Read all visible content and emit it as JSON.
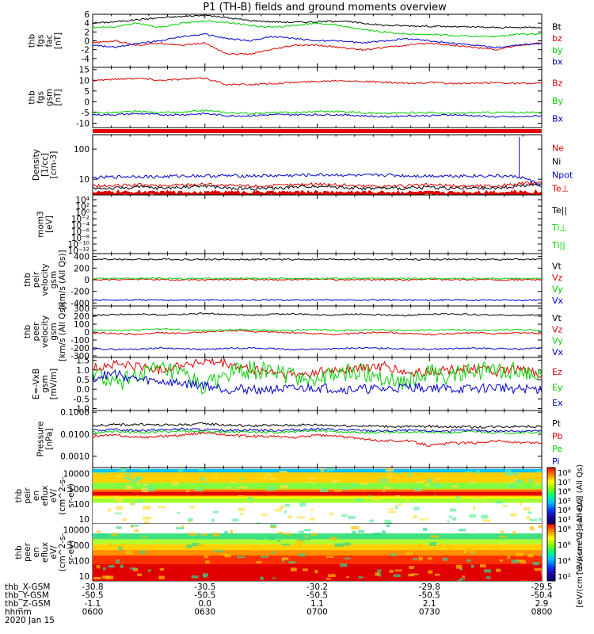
{
  "title": "P1 (TH-B) fields and ground moments overview",
  "colors": {
    "black": "#000000",
    "red": "#e00000",
    "green": "#00d000",
    "blue": "#0000cc"
  },
  "chart_data": {
    "type": "line",
    "x": {
      "tick_labels": [
        "0600",
        "0630",
        "0700",
        "0730",
        "0800"
      ],
      "range_minutes": [
        0,
        120
      ]
    },
    "ephemeris": {
      "labels": [
        "thb_X-GSM",
        "thb_Y-GSM",
        "thb_Z-GSM",
        "hhmm",
        "2020 Jan 15"
      ],
      "rows": [
        [
          "-30.8",
          "-30.5",
          "-30.2",
          "-29.8",
          "-29.5"
        ],
        [
          "-50.5",
          "-50.5",
          "-50.5",
          "-50.5",
          "-50.4"
        ],
        [
          "-1.1",
          "0.0",
          "1.1",
          "2.1",
          "2.9"
        ],
        [
          "0600",
          "0630",
          "0700",
          "0730",
          "0800"
        ]
      ]
    },
    "panels": [
      {
        "id": "fgs_fac",
        "ylabel": [
          "thb",
          "fgs",
          "fac",
          "[nT]"
        ],
        "ylim": [
          -6,
          6
        ],
        "ticks": [
          "6",
          "4",
          "2",
          "0",
          "-2",
          "-4"
        ],
        "series": [
          {
            "name": "Bt",
            "color": "black",
            "values": [
              4.0,
              4.3,
              4.8,
              5.2,
              5.5,
              5.8,
              5.2,
              4.6,
              4.3,
              4.2,
              4.3,
              4.5,
              4.0,
              3.5,
              3.4,
              3.3,
              3.2,
              3.1,
              3.0,
              3.0,
              3.1
            ]
          },
          {
            "name": "bz",
            "color": "red",
            "values": [
              -0.5,
              0.0,
              -1.0,
              -0.5,
              -1.0,
              -0.5,
              -3.0,
              -3.0,
              -2.0,
              -1.0,
              -1.0,
              -1.5,
              -2.0,
              -1.5,
              -1.0,
              -0.5,
              -1.0,
              -1.5,
              -2.0,
              -1.0,
              -0.5
            ]
          },
          {
            "name": "by",
            "color": "green",
            "values": [
              3.0,
              3.2,
              4.0,
              3.0,
              4.0,
              4.5,
              4.2,
              3.5,
              3.0,
              3.5,
              4.0,
              3.5,
              2.5,
              2.0,
              1.5,
              1.5,
              1.2,
              1.0,
              1.0,
              1.5,
              1.5
            ]
          },
          {
            "name": "bx",
            "color": "blue",
            "values": [
              -1.0,
              -1.5,
              -0.5,
              0.0,
              1.0,
              1.5,
              0.5,
              0.0,
              1.0,
              0.5,
              0.0,
              0.0,
              -0.5,
              0.0,
              0.5,
              0.0,
              -0.5,
              -1.0,
              -1.5,
              -1.0,
              -0.5
            ]
          }
        ]
      },
      {
        "id": "fgs_gsm",
        "ylabel": [
          "thb",
          "fgs",
          "gsm",
          "[nT]"
        ],
        "ylim": [
          -12,
          16
        ],
        "ticks": [
          "15",
          "10",
          "5",
          "0",
          "-5",
          "-10"
        ],
        "series": [
          {
            "name": "Bz",
            "color": "red",
            "values": [
              10.0,
              10.5,
              11.0,
              10.0,
              10.5,
              11.0,
              8.0,
              8.0,
              8.5,
              9.0,
              9.5,
              10.0,
              9.5,
              9.0,
              8.5,
              9.0,
              8.5,
              8.5,
              9.0,
              8.5,
              8.5
            ]
          },
          {
            "name": "By",
            "color": "green",
            "values": [
              -5.0,
              -5.0,
              -4.5,
              -5.0,
              -5.0,
              -4.0,
              -5.0,
              -5.5,
              -5.0,
              -5.0,
              -4.5,
              -4.5,
              -5.0,
              -5.5,
              -5.0,
              -5.0,
              -5.5,
              -5.0,
              -5.0,
              -5.0,
              -5.0
            ]
          },
          {
            "name": "Bx",
            "color": "blue",
            "values": [
              -6.0,
              -6.0,
              -5.5,
              -6.0,
              -6.0,
              -5.5,
              -6.5,
              -6.5,
              -6.0,
              -6.0,
              -6.0,
              -6.0,
              -6.5,
              -7.0,
              -6.5,
              -6.5,
              -6.0,
              -6.5,
              -7.0,
              -7.0,
              -6.5
            ]
          }
        ]
      },
      {
        "id": "density",
        "ylabel": [
          "Density",
          "[1/cc]",
          "[cm-3]"
        ],
        "scale": "log",
        "ylim": [
          3,
          300
        ],
        "ticks": [
          "100",
          "10"
        ],
        "series": [
          {
            "name": "Ne",
            "color": "red",
            "values": [
              6,
              6,
              6.5,
              6,
              6.5,
              7,
              6,
              6,
              6,
              6.5,
              7,
              6.5,
              6,
              6,
              6,
              6.5,
              6,
              6,
              6,
              7,
              8
            ]
          },
          {
            "name": "Ni",
            "color": "black",
            "values": [
              5,
              5,
              5.5,
              5,
              5.5,
              6,
              5,
              5,
              5,
              5.5,
              6,
              5.5,
              5,
              5,
              5,
              5.5,
              5,
              5,
              5,
              6,
              6.5
            ]
          },
          {
            "name": "Npot",
            "color": "blue",
            "values": [
              11,
              12,
              12.5,
              12,
              13,
              13,
              13,
              13,
              13,
              13.5,
              14,
              14,
              13,
              14,
              13,
              13,
              13,
              13,
              13,
              12,
              6
            ]
          },
          {
            "name": "Te⊥",
            "color": "red",
            "values": [
              3.3,
              3.3,
              3.3,
              3.3,
              3.3,
              3.3,
              3.3,
              3.3,
              3.3,
              3.3,
              3.3,
              3.3,
              3.3,
              3.3,
              3.3,
              3.3,
              3.3,
              3.3,
              3.3,
              3.3,
              3.3
            ]
          }
        ]
      },
      {
        "id": "mom_temp",
        "ylabel": [
          "mom3",
          "[eV]"
        ],
        "scale": "log",
        "ticks": [
          "10⁴",
          "10²",
          "10⁰",
          "10⁻²",
          "10⁻⁴",
          "10⁻⁶",
          "10⁻⁸",
          "10⁻¹⁰",
          "10⁻¹²"
        ],
        "series": [
          {
            "name": "Te||",
            "color": "black",
            "values": []
          },
          {
            "name": "Ti⊥",
            "color": "green",
            "values": []
          },
          {
            "name": "Ti||",
            "color": "green",
            "values": []
          }
        ]
      },
      {
        "id": "peir_velocity",
        "ylabel": [
          "thb",
          "peir",
          "velocity",
          "gsm",
          "[km/s (All Qs)]"
        ],
        "ylim": [
          -450,
          450
        ],
        "ticks": [
          "400",
          "200",
          "0",
          "-200",
          "-400"
        ],
        "series": [
          {
            "name": "Vt",
            "color": "black",
            "values": [
              350,
              352,
              350,
              351,
              350,
              352,
              350,
              349,
              350,
              351,
              350,
              352,
              350,
              350,
              349,
              350,
              351,
              350,
              350,
              351,
              350
            ]
          },
          {
            "name": "Vz",
            "color": "red",
            "values": [
              5,
              0,
              10,
              5,
              0,
              -5,
              5,
              10,
              0,
              5,
              10,
              0,
              5,
              0,
              -5,
              10,
              5,
              0,
              5,
              0,
              5
            ]
          },
          {
            "name": "Vy",
            "color": "green",
            "values": [
              20,
              22,
              20,
              24,
              20,
              22,
              21,
              20,
              23,
              22,
              20,
              21,
              22,
              20,
              21,
              22,
              20,
              23,
              21,
              22,
              20
            ]
          },
          {
            "name": "Vx",
            "color": "blue",
            "values": [
              -348,
              -349,
              -348,
              -350,
              -349,
              -348,
              -349,
              -350,
              -349,
              -348,
              -349,
              -350,
              -349,
              -348,
              -349,
              -350,
              -349,
              -348,
              -349,
              -350,
              -349
            ]
          }
        ]
      },
      {
        "id": "peer_velocity",
        "ylabel": [
          "thb",
          "peer",
          "velocity",
          "gsm",
          "[km/s (All Qs)]"
        ],
        "ylim": [
          -320,
          330
        ],
        "ticks": [
          "300",
          "200",
          "100",
          "0",
          "-100",
          "-200",
          "-300"
        ],
        "series": [
          {
            "name": "Vt",
            "color": "black",
            "values": [
              210,
              220,
              230,
              215,
              225,
              235,
              220,
              210,
              225,
              230,
              215,
              220,
              230,
              215,
              210,
              225,
              230,
              220,
              215,
              210,
              220
            ]
          },
          {
            "name": "Vz",
            "color": "red",
            "values": [
              -10,
              -20,
              -30,
              -10,
              -20,
              0,
              20,
              10,
              0,
              -10,
              -20,
              -30,
              -10,
              0,
              -20,
              -30,
              -20,
              -10,
              -20,
              -10,
              -20
            ]
          },
          {
            "name": "Vy",
            "color": "green",
            "values": [
              30,
              20,
              25,
              40,
              30,
              20,
              25,
              30,
              20,
              25,
              30,
              20,
              25,
              30,
              20,
              25,
              30,
              20,
              25,
              30,
              20
            ]
          },
          {
            "name": "Vx",
            "color": "blue",
            "values": [
              -210,
              -220,
              -215,
              -200,
              -210,
              -220,
              -205,
              -200,
              -210,
              -220,
              -215,
              -210,
              -200,
              -205,
              -210,
              -215,
              -210,
              -205,
              -210,
              -215,
              -200
            ]
          }
        ]
      },
      {
        "id": "efield",
        "ylabel": [
          "E=-VxB",
          "gsm",
          "[mV/m]"
        ],
        "ylim": [
          -1.1,
          1.65
        ],
        "ticks": [
          "1.5",
          "1.0",
          "0.5",
          "0.0",
          "-0.5",
          "-1.0"
        ],
        "series": [
          {
            "name": "Ez",
            "color": "red",
            "values": [
              1.1,
              1.3,
              1.2,
              1.0,
              1.3,
              1.4,
              1.3,
              1.0,
              0.9,
              0.7,
              0.9,
              1.0,
              1.1,
              1.2,
              0.8,
              0.9,
              1.0,
              1.1,
              0.9,
              1.0,
              0.8
            ]
          },
          {
            "name": "Ey",
            "color": "green",
            "values": [
              0.9,
              0.2,
              0.8,
              1.0,
              0.7,
              0.1,
              0.8,
              1.0,
              0.9,
              0.7,
              0.5,
              0.8,
              0.9,
              0.6,
              0.4,
              0.8,
              0.7,
              0.9,
              1.0,
              0.9,
              0.8
            ]
          },
          {
            "name": "Ex",
            "color": "blue",
            "values": [
              0.6,
              0.8,
              0.5,
              0.4,
              0.3,
              0.2,
              0.0,
              0.0,
              0.0,
              0.0,
              0.1,
              0.0,
              0.0,
              0.0,
              0.1,
              0.1,
              0.0,
              0.0,
              0.1,
              0.0,
              0.0
            ]
          }
        ]
      },
      {
        "id": "pressure",
        "ylabel": [
          "Pressure",
          "[nPa]"
        ],
        "scale": "log",
        "ylim": [
          0.0003,
          0.12
        ],
        "ticks": [
          "0.1000",
          "0.0100",
          "0.0010"
        ],
        "series": [
          {
            "name": "Pt",
            "color": "black",
            "values": [
              0.025,
              0.027,
              0.028,
              0.026,
              0.027,
              0.03,
              0.026,
              0.024,
              0.025,
              0.026,
              0.027,
              0.025,
              0.024,
              0.023,
              0.022,
              0.023,
              0.022,
              0.021,
              0.022,
              0.023,
              0.022
            ]
          },
          {
            "name": "Pb",
            "color": "red",
            "values": [
              0.008,
              0.009,
              0.007,
              0.008,
              0.009,
              0.012,
              0.009,
              0.008,
              0.008,
              0.007,
              0.009,
              0.008,
              0.006,
              0.005,
              0.005,
              0.003,
              0.004,
              0.004,
              0.005,
              0.004,
              0.004
            ]
          },
          {
            "name": "Pe",
            "color": "green",
            "values": [
              0.012,
              0.013,
              0.012,
              0.013,
              0.014,
              0.013,
              0.013,
              0.013,
              0.012,
              0.013,
              0.014,
              0.013,
              0.012,
              0.012,
              0.013,
              0.012,
              0.012,
              0.013,
              0.012,
              0.012,
              0.012
            ]
          },
          {
            "name": "Pi",
            "color": "blue",
            "values": [
              0.015,
              0.016,
              0.015,
              0.016,
              0.017,
              0.016,
              0.015,
              0.016,
              0.015,
              0.016,
              0.017,
              0.016,
              0.015,
              0.014,
              0.015,
              0.014,
              0.014,
              0.015,
              0.014,
              0.014,
              0.014
            ]
          }
        ]
      },
      {
        "id": "peir_spectrogram",
        "type": "heatmap",
        "ylabel": [
          "thb",
          "peir",
          "en",
          "eflux",
          "eV/",
          "(cm^2-s-",
          "sr-eV)"
        ],
        "scale": "log",
        "ylim": [
          5,
          25000
        ],
        "ticks": [
          "10000",
          "1000",
          "100",
          "10"
        ],
        "colorbar_ticks": [
          "10⁸",
          "10⁷",
          "10⁶",
          "10⁵",
          "10⁴",
          "10³"
        ],
        "colorbar_label": "[eV/(cm^2-s-sr-eV)] (All Qs)"
      },
      {
        "id": "peer_spectrogram",
        "type": "heatmap",
        "ylabel": [
          "thb",
          "peer",
          "en",
          "eflux",
          "eV/",
          "(cm^2-s-",
          "sr-eV)"
        ],
        "scale": "log",
        "ylim": [
          5,
          25000
        ],
        "ticks": [
          "10000",
          "1000",
          "100",
          "10"
        ],
        "colorbar_ticks": [
          "10⁸",
          "10⁶",
          "10⁴",
          "10²"
        ],
        "colorbar_label": "[eV/(cm^2-s-sr-eV)] (All Qs)"
      }
    ]
  }
}
